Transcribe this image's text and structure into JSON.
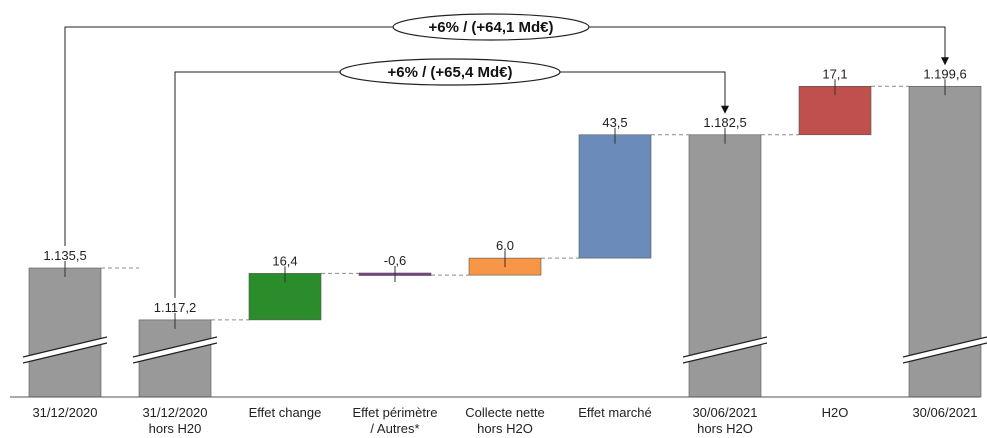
{
  "chart_data": {
    "type": "waterfall",
    "categories": [
      [
        "31/12/2020"
      ],
      [
        "31/12/2020",
        "hors H20"
      ],
      [
        "Effet change"
      ],
      [
        "Effet périmètre",
        "/ Autres*"
      ],
      [
        "Collecte nette",
        "hors H2O"
      ],
      [
        "Effet marché"
      ],
      [
        "30/06/2021",
        "hors H2O"
      ],
      [
        "H2O"
      ],
      [
        "30/06/2021"
      ]
    ],
    "steps": [
      {
        "kind": "total",
        "value": 1135.5,
        "label": "1.135,5",
        "color": "#999999",
        "axis_break": true
      },
      {
        "kind": "total",
        "value": 1117.2,
        "label": "1.117,2",
        "color": "#999999",
        "axis_break": true
      },
      {
        "kind": "delta",
        "value": 16.4,
        "label": "16,4",
        "color": "#2a8c2a"
      },
      {
        "kind": "delta",
        "value": -0.6,
        "label": "-0,6",
        "color": "#7b3f8c"
      },
      {
        "kind": "delta",
        "value": 6.0,
        "label": "6,0",
        "color": "#f79646"
      },
      {
        "kind": "delta",
        "value": 43.5,
        "label": "43,5",
        "color": "#6b8cba"
      },
      {
        "kind": "total",
        "value": 1182.5,
        "label": "1.182,5",
        "color": "#999999",
        "axis_break": true
      },
      {
        "kind": "delta",
        "value": 17.1,
        "label": "17,1",
        "color": "#c0504d"
      },
      {
        "kind": "total",
        "value": 1199.6,
        "label": "1.199,6",
        "color": "#999999",
        "axis_break": true
      }
    ],
    "annotations": [
      {
        "text": "+6% / (+64,1 Md€)",
        "from": 0,
        "to": 8
      },
      {
        "text": "+6% / (+65,4 Md€)",
        "from": 1,
        "to": 6
      }
    ],
    "y_range": [
      1090,
      1205
    ],
    "axis_break": true,
    "grid": false,
    "legend": "none"
  }
}
